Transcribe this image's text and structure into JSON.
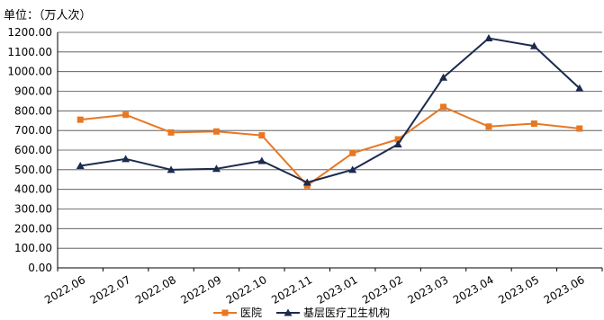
{
  "chart_data": {
    "type": "line",
    "unit_label": "单位：（万人次）",
    "categories": [
      "2022.06",
      "2022.07",
      "2022.08",
      "2022.09",
      "2022.10",
      "2022.11",
      "2023.01",
      "2023.02",
      "2023.03",
      "2023.04",
      "2023.05",
      "2023.06"
    ],
    "ylim": [
      0,
      1200
    ],
    "ytick_step": 100,
    "ytick_labels": [
      "0.00",
      "100.00",
      "200.00",
      "300.00",
      "400.00",
      "500.00",
      "600.00",
      "700.00",
      "800.00",
      "900.00",
      "1000.00",
      "1100.00",
      "1200.00"
    ],
    "grid": true,
    "legend_position": "bottom",
    "series": [
      {
        "name": "医院",
        "color": "#E87722",
        "marker": "square",
        "values": [
          755,
          780,
          690,
          695,
          675,
          420,
          585,
          655,
          820,
          720,
          735,
          710
        ]
      },
      {
        "name": "基层医疗卫生机构",
        "color": "#1B2A4E",
        "marker": "triangle",
        "values": [
          520,
          555,
          500,
          505,
          545,
          435,
          500,
          630,
          970,
          1170,
          1130,
          915
        ]
      }
    ]
  }
}
